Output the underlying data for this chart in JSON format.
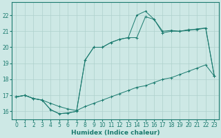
{
  "bg_color": "#cde8e5",
  "grid_color": "#aed0cc",
  "line_color": "#1a7a6e",
  "xlabel": "Humidex (Indice chaleur)",
  "xlim": [
    -0.5,
    23.5
  ],
  "ylim": [
    15.5,
    22.8
  ],
  "yticks": [
    16,
    17,
    18,
    19,
    20,
    21,
    22
  ],
  "xticks": [
    0,
    1,
    2,
    3,
    4,
    5,
    6,
    7,
    8,
    9,
    10,
    11,
    12,
    13,
    14,
    15,
    16,
    17,
    18,
    19,
    20,
    21,
    22,
    23
  ],
  "line1_x": [
    0,
    1,
    2,
    3,
    4,
    5,
    6,
    7,
    8,
    9,
    10,
    11,
    12,
    13,
    14,
    15,
    16,
    17,
    18,
    19,
    20,
    21,
    22,
    23
  ],
  "line1_y": [
    16.9,
    17.0,
    16.8,
    16.7,
    16.5,
    16.3,
    16.15,
    16.05,
    16.3,
    16.5,
    16.7,
    16.9,
    17.1,
    17.3,
    17.5,
    17.6,
    17.8,
    18.0,
    18.1,
    18.3,
    18.5,
    18.7,
    18.9,
    18.2
  ],
  "line2_x": [
    0,
    1,
    2,
    3,
    4,
    5,
    6,
    7,
    8,
    9,
    10,
    11,
    12,
    13,
    14,
    15,
    16,
    17,
    18,
    19,
    20,
    21,
    22,
    23
  ],
  "line2_y": [
    16.9,
    17.0,
    16.8,
    16.7,
    16.1,
    15.85,
    15.9,
    16.0,
    19.2,
    20.0,
    20.0,
    20.3,
    20.5,
    20.6,
    20.6,
    21.9,
    21.75,
    20.9,
    21.0,
    21.0,
    21.1,
    21.1,
    21.2,
    18.2
  ],
  "line3_x": [
    0,
    1,
    2,
    3,
    4,
    5,
    6,
    7,
    8,
    9,
    10,
    11,
    12,
    13,
    14,
    15,
    16,
    17,
    18,
    19,
    20,
    21,
    22,
    23
  ],
  "line3_y": [
    16.9,
    17.0,
    16.8,
    16.7,
    16.1,
    15.85,
    15.9,
    16.0,
    19.2,
    20.0,
    20.0,
    20.3,
    20.5,
    20.6,
    22.0,
    22.25,
    21.75,
    21.0,
    21.05,
    21.0,
    21.05,
    21.15,
    21.2,
    18.2
  ]
}
